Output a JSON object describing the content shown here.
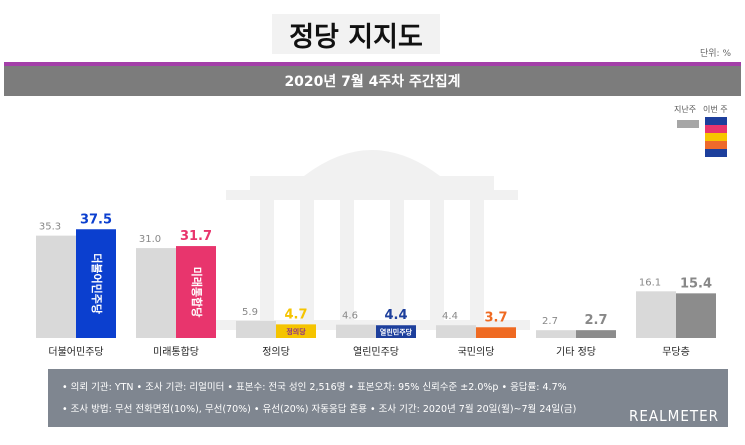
{
  "header": {
    "title": "정당 지지도",
    "unit": "단위: %",
    "subtitle": "2020년 7월 4주차 주간집계"
  },
  "legend": {
    "prev_label": "지난주",
    "curr_label": "이번 주",
    "curr_colors": [
      "#1d3f9c",
      "#e8356d",
      "#f7c600",
      "#ee6a2b",
      "#1d3f9c"
    ]
  },
  "colors": {
    "prev_bar": "#d9d9d9",
    "prev_value_text": "#888888"
  },
  "chart_data": {
    "type": "bar",
    "title": "정당 지지도",
    "ylabel": "",
    "ylim": [
      0,
      40
    ],
    "categories": [
      "더불어민주당",
      "미래통합당",
      "정의당",
      "열린민주당",
      "국민의당",
      "기타 정당",
      "무당층"
    ],
    "series": [
      {
        "name": "지난주",
        "values": [
          35.3,
          31.0,
          5.9,
          4.6,
          4.4,
          2.7,
          16.1
        ]
      },
      {
        "name": "이번 주",
        "values": [
          37.5,
          31.7,
          4.7,
          4.4,
          3.7,
          2.7,
          15.4
        ]
      }
    ],
    "prev_labels": [
      "35.3",
      "31.0",
      "5.9",
      "4.6",
      "4.4",
      "2.7",
      "16.1"
    ],
    "curr_labels": [
      "37.5",
      "31.7",
      "4.7",
      "4.4",
      "3.7",
      "2.7",
      "15.4"
    ],
    "curr_colors": [
      "#0b3fcf",
      "#e8356d",
      "#f5c400",
      "#1d3f9c",
      "#ef6a22",
      "#8c8c8c",
      "#8c8c8c"
    ],
    "curr_label_colors": [
      "#0b3fcf",
      "#e8356d",
      "#f5c400",
      "#1d3f9c",
      "#ef6a22",
      "#888888",
      "#888888"
    ],
    "party_logos": [
      "더불어민주당",
      "미래통합당",
      "정의당",
      "열린민주당",
      "",
      "",
      ""
    ]
  },
  "footer": {
    "line1": "• 의뢰 기관: YTN  • 조사 기관: 리얼미터  • 표본수: 전국 성인 2,516명  • 표본오차: 95% 신뢰수준 ±2.0%p  • 응답률: 4.7%",
    "line2": "• 조사 방법: 무선 전화면접(10%), 무선(70%) • 유선(20%) 자동응답 혼용  • 조사 기간: 2020년 7월 20일(월)~7월 24일(금)",
    "brand": "REALMETER"
  }
}
